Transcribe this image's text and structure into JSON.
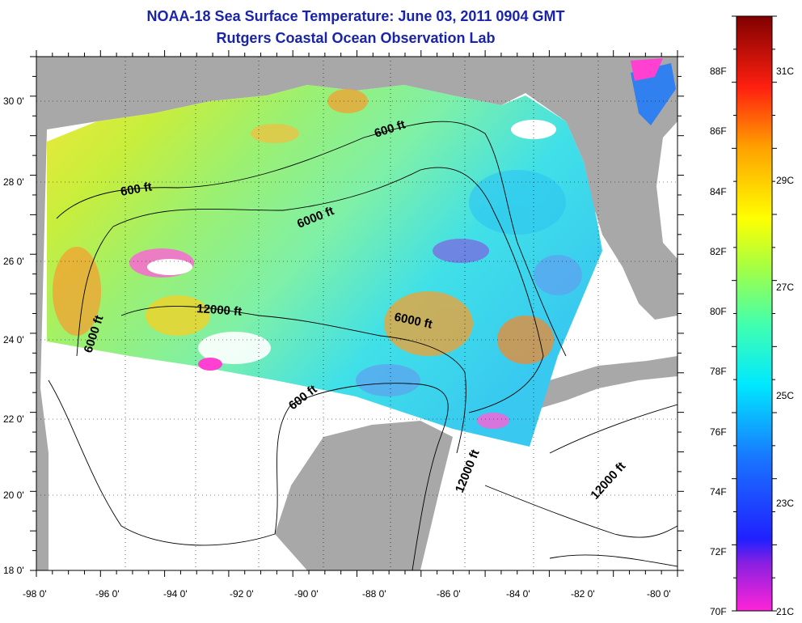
{
  "header": {
    "title": "NOAA-18 Sea Surface Temperature:  June 03, 2011 0904 GMT",
    "subtitle": "Rutgers Coastal Ocean Observation Lab"
  },
  "axes": {
    "lat_labels": [
      "30 0'",
      "28 0'",
      "26 0'",
      "24 0'",
      "22 0'",
      "20 0'",
      "18 0'"
    ],
    "lon_labels": [
      "-98 0'",
      "-96 0'",
      "-94 0'",
      "-92 0'",
      "-90 0'",
      "-88 0'",
      "-86 0'",
      "-84 0'",
      "-82 0'",
      "-80 0'"
    ]
  },
  "contours": [
    {
      "label": "600 ft"
    },
    {
      "label": "600 ft"
    },
    {
      "label": "6000 ft"
    },
    {
      "label": "12000 ft"
    },
    {
      "label": "6000 ft"
    },
    {
      "label": "6000 ft"
    },
    {
      "label": "600 ft"
    },
    {
      "label": "12000 ft"
    },
    {
      "label": "12000 ft"
    }
  ],
  "colorbar": {
    "fahrenheit": [
      "88F",
      "86F",
      "84F",
      "82F",
      "80F",
      "78F",
      "76F",
      "74F",
      "72F",
      "70F"
    ],
    "celsius": [
      "31C",
      "29C",
      "27C",
      "25C",
      "23C",
      "21C"
    ]
  },
  "colors": {
    "land": "#a8a8a8",
    "nodata": "#ffffff",
    "title": "#1a24a8"
  }
}
